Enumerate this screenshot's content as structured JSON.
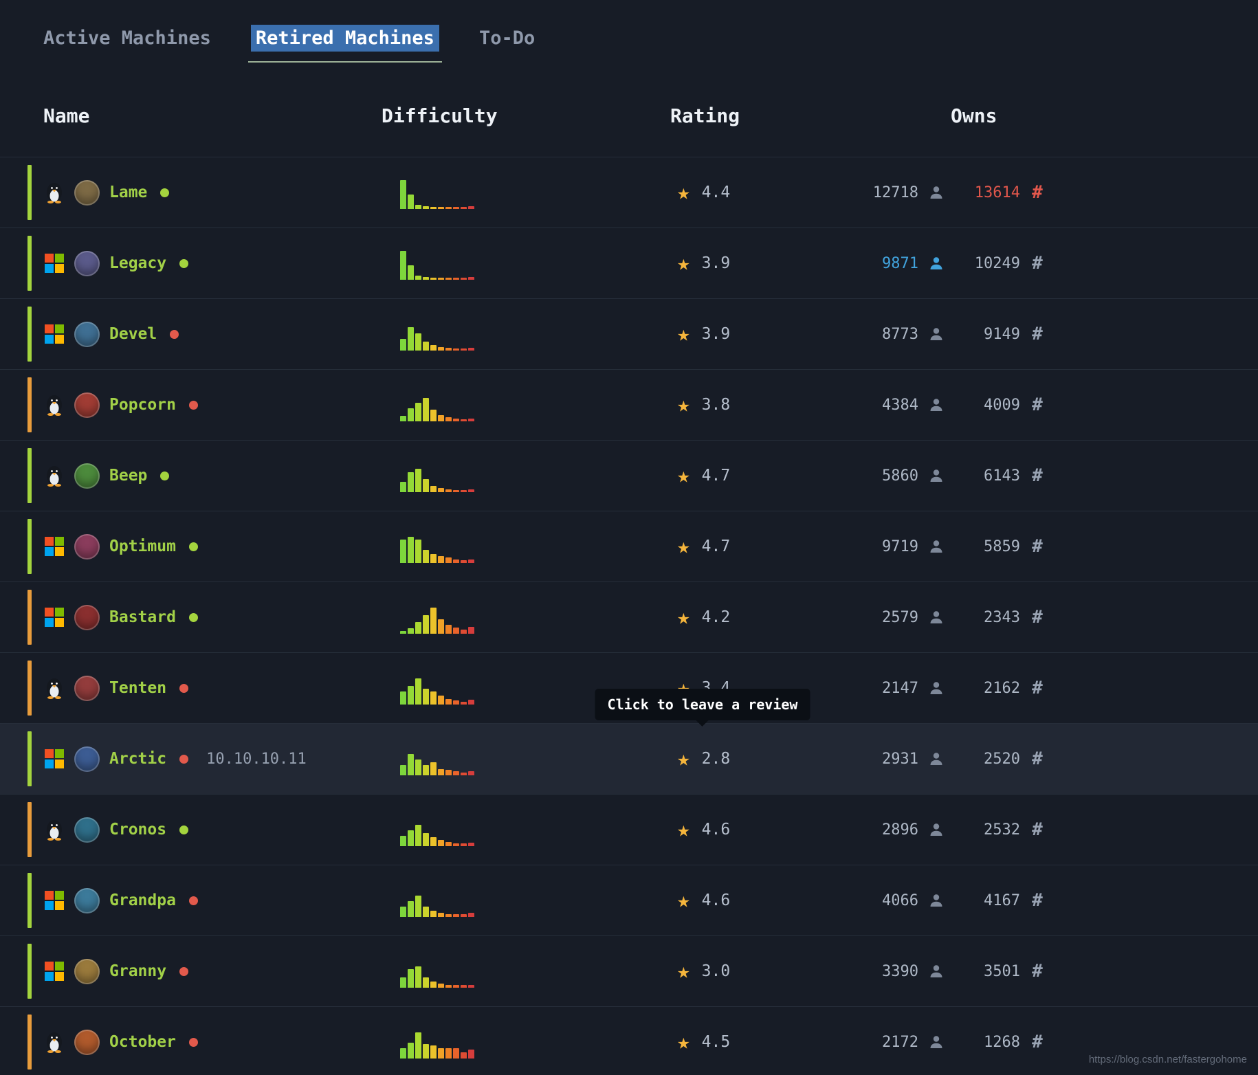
{
  "tabs": [
    {
      "label": "Active Machines",
      "active": false
    },
    {
      "label": "Retired Machines",
      "active": true
    },
    {
      "label": "To-Do",
      "active": false
    }
  ],
  "columns": {
    "name": "Name",
    "difficulty": "Difficulty",
    "rating": "Rating",
    "owns": "Owns"
  },
  "tooltip": {
    "text": "Click to leave a review"
  },
  "watermark": "https://blog.csdn.net/fastergohome",
  "icons": {
    "star": "★",
    "hash": "#",
    "user": "person-silhouette",
    "linux": "tux-penguin",
    "windows": "windows-logo"
  },
  "colors": {
    "easy_tier": "#a4d43e",
    "medium_tier": "#e89c3c",
    "status_green": "#a4d43e",
    "status_red": "#e25a4c",
    "star": "#f5b53c",
    "user_highlight_blue": "#41a3dd",
    "root_highlight_red": "#e2574c",
    "tab_selection": "#3b6fae",
    "tab_underline": "#9cb197"
  },
  "difficulty_palette": [
    "#7ed63c",
    "#93d937",
    "#abd931",
    "#ccd32c",
    "#ecc22b",
    "#f2a227",
    "#ef8125",
    "#e9632b",
    "#df4c33",
    "#d63d3c"
  ],
  "machines": [
    {
      "name": "Lame",
      "os": "linux",
      "tier": "easy",
      "status": "green",
      "ip": "",
      "difficulty": [
        10,
        5,
        1.5,
        1,
        0.7,
        0.7,
        0.7,
        0.7,
        0.7,
        0.9
      ],
      "rating": "4.4",
      "user_owns": "12718",
      "root_owns": "13614",
      "user_color": null,
      "root_color": "#e2574c",
      "avatar": "#7d6a45",
      "hover": false,
      "tooltip": false
    },
    {
      "name": "Legacy",
      "os": "windows",
      "tier": "easy",
      "status": "green",
      "ip": "",
      "difficulty": [
        10,
        5,
        1.5,
        1,
        0.7,
        0.7,
        0.7,
        0.7,
        0.7,
        0.9
      ],
      "rating": "3.9",
      "user_owns": "9871",
      "root_owns": "10249",
      "user_color": "#41a3dd",
      "root_color": null,
      "avatar": "#5a5a8a",
      "hover": false,
      "tooltip": false
    },
    {
      "name": "Devel",
      "os": "windows",
      "tier": "easy",
      "status": "red",
      "ip": "",
      "difficulty": [
        4,
        8,
        6,
        3,
        2,
        1.2,
        1,
        0.8,
        0.8,
        1
      ],
      "rating": "3.9",
      "user_owns": "8773",
      "root_owns": "9149",
      "user_color": null,
      "root_color": null,
      "avatar": "#3f6f93",
      "hover": false,
      "tooltip": false
    },
    {
      "name": "Popcorn",
      "os": "linux",
      "tier": "medium",
      "status": "red",
      "ip": "",
      "difficulty": [
        2,
        4.5,
        6.5,
        8,
        4,
        2.2,
        1.4,
        1,
        0.8,
        1
      ],
      "rating": "3.8",
      "user_owns": "4384",
      "root_owns": "4009",
      "user_color": null,
      "root_color": null,
      "avatar": "#a03c34",
      "hover": false,
      "tooltip": false
    },
    {
      "name": "Beep",
      "os": "linux",
      "tier": "easy",
      "status": "green",
      "ip": "",
      "difficulty": [
        3.5,
        7,
        8,
        4.5,
        2.2,
        1.4,
        1,
        0.8,
        0.8,
        1
      ],
      "rating": "4.7",
      "user_owns": "5860",
      "root_owns": "6143",
      "user_color": null,
      "root_color": null,
      "avatar": "#4c8a3c",
      "hover": false,
      "tooltip": false
    },
    {
      "name": "Optimum",
      "os": "windows",
      "tier": "easy",
      "status": "green",
      "ip": "",
      "difficulty": [
        8,
        9,
        8,
        4.5,
        3,
        2.4,
        2,
        1.2,
        1,
        1.2
      ],
      "rating": "4.7",
      "user_owns": "9719",
      "root_owns": "5859",
      "user_color": null,
      "root_color": null,
      "avatar": "#8a3c5c",
      "hover": false,
      "tooltip": false
    },
    {
      "name": "Bastard",
      "os": "windows",
      "tier": "medium",
      "status": "green",
      "ip": "",
      "difficulty": [
        1,
        2,
        4,
        6.5,
        9,
        5,
        3.2,
        2.2,
        1.4,
        2.4
      ],
      "rating": "4.2",
      "user_owns": "2579",
      "root_owns": "2343",
      "user_color": null,
      "root_color": null,
      "avatar": "#8a2f2f",
      "hover": false,
      "tooltip": false
    },
    {
      "name": "Tenten",
      "os": "linux",
      "tier": "medium",
      "status": "red",
      "ip": "",
      "difficulty": [
        4.5,
        6.5,
        9,
        5.5,
        4.5,
        3.2,
        2,
        1.4,
        1,
        1.6
      ],
      "rating": "3.4",
      "user_owns": "2147",
      "root_owns": "2162",
      "user_color": null,
      "root_color": null,
      "avatar": "#933c3c",
      "hover": false,
      "tooltip": true
    },
    {
      "name": "Arctic",
      "os": "windows",
      "tier": "easy",
      "status": "red",
      "ip": "10.10.10.11",
      "difficulty": [
        3.5,
        7.5,
        5.5,
        3.5,
        4.5,
        2.2,
        2,
        1.4,
        1,
        1.4
      ],
      "rating": "2.8",
      "user_owns": "2931",
      "root_owns": "2520",
      "user_color": null,
      "root_color": null,
      "avatar": "#3c5c93",
      "hover": true,
      "tooltip": false
    },
    {
      "name": "Cronos",
      "os": "linux",
      "tier": "medium",
      "status": "green",
      "ip": "",
      "difficulty": [
        3.5,
        5.5,
        7.5,
        4.5,
        3.2,
        2.2,
        1.4,
        1,
        1,
        1.2
      ],
      "rating": "4.6",
      "user_owns": "2896",
      "root_owns": "2532",
      "user_color": null,
      "root_color": null,
      "avatar": "#2f6f8a",
      "hover": false,
      "tooltip": false
    },
    {
      "name": "Grandpa",
      "os": "windows",
      "tier": "easy",
      "status": "red",
      "ip": "",
      "difficulty": [
        3.5,
        5.5,
        7.5,
        3.5,
        2.2,
        1.4,
        1,
        1,
        1,
        1.4
      ],
      "rating": "4.6",
      "user_owns": "4066",
      "root_owns": "4167",
      "user_color": null,
      "root_color": null,
      "avatar": "#3c7a9a",
      "hover": false,
      "tooltip": false
    },
    {
      "name": "Granny",
      "os": "windows",
      "tier": "easy",
      "status": "red",
      "ip": "",
      "difficulty": [
        3.5,
        6.5,
        7.5,
        3.5,
        2.2,
        1.4,
        1,
        1,
        1,
        1
      ],
      "rating": "3.0",
      "user_owns": "3390",
      "root_owns": "3501",
      "user_color": null,
      "root_color": null,
      "avatar": "#9a7a3c",
      "hover": false,
      "tooltip": false
    },
    {
      "name": "October",
      "os": "linux",
      "tier": "medium",
      "status": "red",
      "ip": "",
      "difficulty": [
        3.5,
        5.5,
        9,
        5,
        4.5,
        3.5,
        3.5,
        3.5,
        2.2,
        3.2
      ],
      "rating": "4.5",
      "user_owns": "2172",
      "root_owns": "1268",
      "user_color": null,
      "root_color": null,
      "avatar": "#b05a2c",
      "hover": false,
      "tooltip": false
    }
  ]
}
